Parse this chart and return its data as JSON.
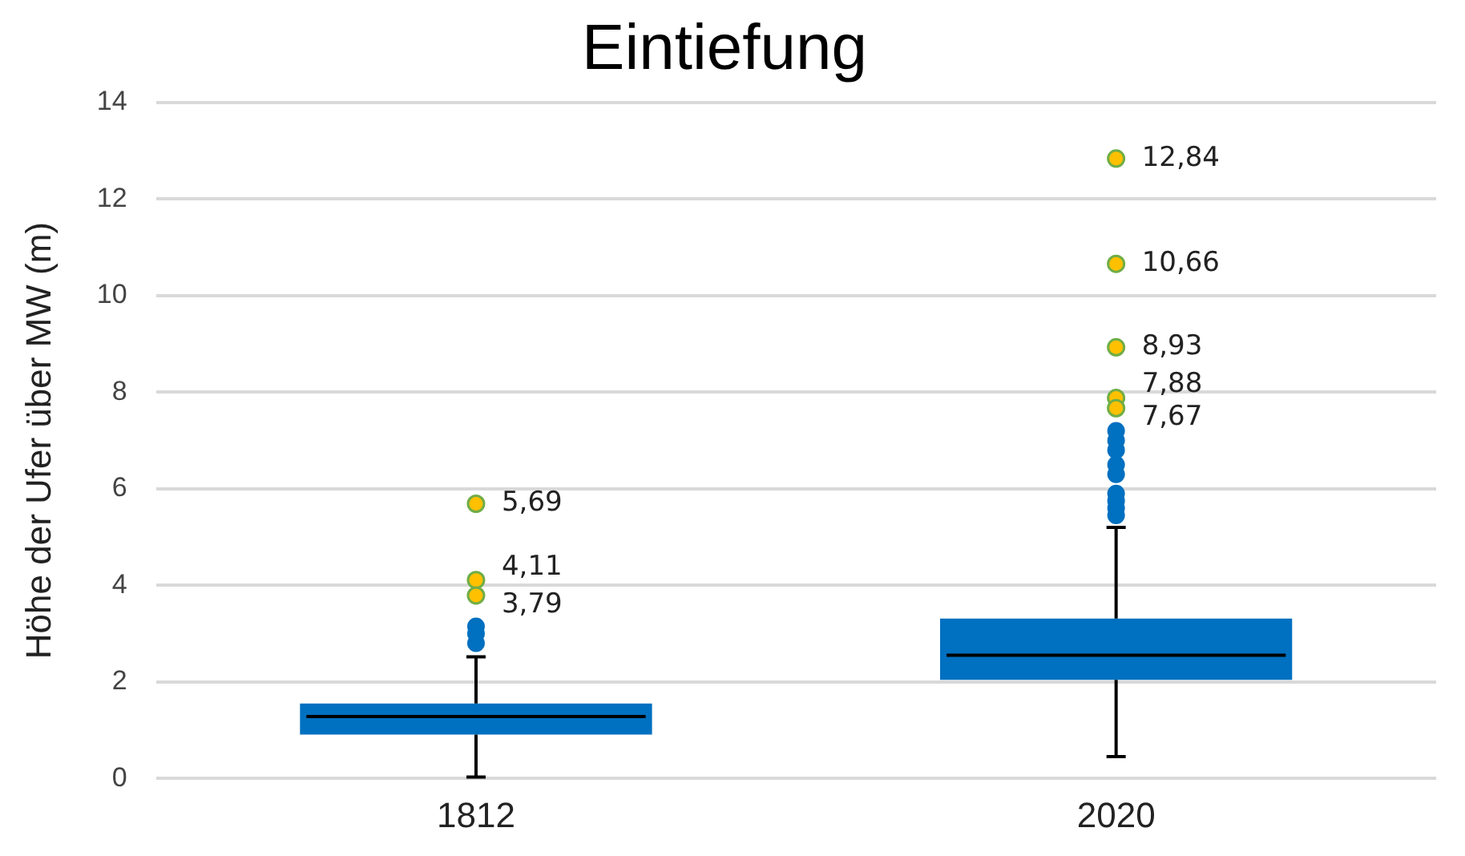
{
  "chart_data": {
    "type": "box",
    "title": "Eintiefung",
    "ylabel": "Höhe der Ufer über MW (m)",
    "categories": [
      "1812",
      "2020"
    ],
    "color": "#0070c0",
    "boxes": [
      {
        "low": 0.03,
        "q1": 0.91,
        "median": 1.28,
        "q3": 1.55,
        "high": 2.52,
        "outliers": [
          2.8,
          3.0,
          3.15
        ]
      },
      {
        "low": 0.45,
        "q1": 2.04,
        "median": 2.55,
        "q3": 3.31,
        "high": 5.2,
        "outliers": [
          5.45,
          5.6,
          5.75,
          5.9,
          6.3,
          6.5,
          6.8,
          7.0,
          7.2
        ]
      }
    ],
    "series": [
      {
        "type": "scatter",
        "color": "#ffc000",
        "values": [
          3.79,
          7.67
        ],
        "value_labels": [
          "3,79",
          "7,67"
        ]
      },
      {
        "type": "scatter",
        "color": "#ffc000",
        "values": [
          4.11,
          7.88
        ],
        "value_labels": [
          "4,11",
          "7,88"
        ]
      },
      {
        "type": "scatter",
        "color": "#ffc000",
        "values": [
          5.69,
          8.93
        ],
        "value_labels": [
          "5,69",
          "8,93"
        ]
      },
      {
        "type": "scatter",
        "color": "#ffc000",
        "values": [
          null,
          10.66
        ],
        "value_labels": [
          null,
          "10,66"
        ]
      },
      {
        "type": "scatter",
        "color": "#ffc000",
        "values": [
          null,
          12.84
        ],
        "value_labels": [
          null,
          "12,84"
        ]
      }
    ],
    "ylim": [
      0,
      14
    ],
    "yticks": [
      0,
      2,
      4,
      6,
      8,
      10,
      12,
      14
    ],
    "grid": "y",
    "legend": false,
    "marker": "circle"
  }
}
